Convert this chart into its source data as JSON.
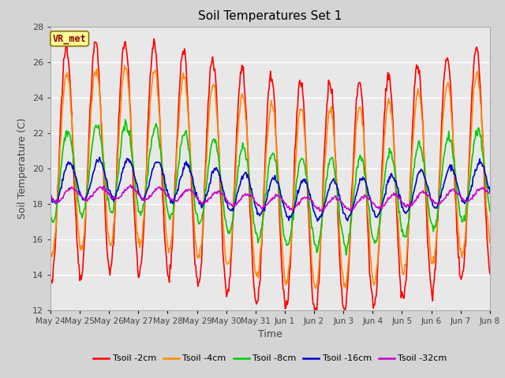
{
  "title": "Soil Temperatures Set 1",
  "xlabel": "Time",
  "ylabel": "Soil Temperature (C)",
  "ylim": [
    12,
    28
  ],
  "yticks": [
    12,
    14,
    16,
    18,
    20,
    22,
    24,
    26,
    28
  ],
  "fig_bg": "#d4d4d4",
  "plot_bg": "#e8e8e8",
  "annotation_text": "VR_met",
  "annotation_bg": "#ffff99",
  "annotation_border": "#8B7000",
  "annotation_text_color": "#8B0000",
  "colors": {
    "Tsoil -2cm": "#ff0000",
    "Tsoil -4cm": "#ff8c00",
    "Tsoil -8cm": "#00cc00",
    "Tsoil -16cm": "#0000cc",
    "Tsoil -32cm": "#cc00cc"
  },
  "dates": [
    "May 24",
    "May 25",
    "May 26",
    "May 27",
    "May 28",
    "May 29",
    "May 30",
    "May 31",
    "Jun 1",
    "Jun 2",
    "Jun 3",
    "Jun 4",
    "Jun 5",
    "Jun 6",
    "Jun 7",
    "Jun 8"
  ],
  "start_day": 0,
  "end_day": 15,
  "num_points": 600,
  "lw": 1.2
}
